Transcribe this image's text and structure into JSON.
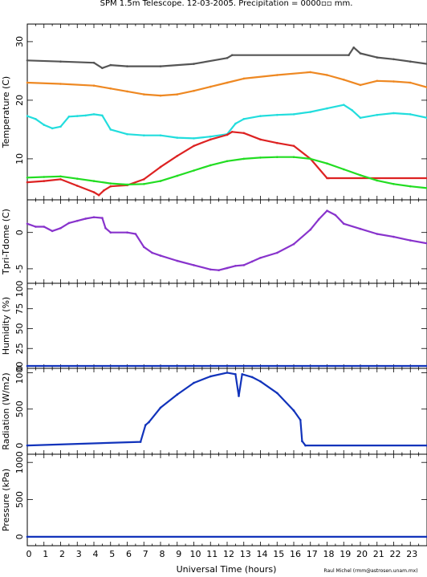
{
  "title": "SPM 1.5m Telescope. 12-03-2005. Precipitation = 0000▫▫ mm.",
  "credit": "Raul Michel (rmm@astrosen.unam.mx)",
  "chart_data": [
    {
      "type": "scatter",
      "ylabel": "Temperature (C)",
      "ylim": [
        3,
        33
      ],
      "yticks": [
        10,
        20,
        30
      ],
      "xlim": [
        0,
        24
      ],
      "series": [
        {
          "color": "#555555",
          "x": [
            0,
            2,
            4,
            4.5,
            5,
            6,
            8,
            10,
            12,
            12.3,
            19.3,
            19.6,
            20,
            21,
            22,
            23,
            24
          ],
          "y": [
            26.8,
            26.6,
            26.4,
            25.5,
            26,
            25.8,
            25.8,
            26.2,
            27.2,
            27.7,
            27.7,
            29,
            28,
            27.3,
            27,
            26.6,
            26.2
          ]
        },
        {
          "color": "#ee8822",
          "x": [
            0,
            2,
            4,
            5,
            6,
            7,
            8,
            9,
            10,
            11,
            12,
            13,
            15,
            17,
            18,
            19,
            20,
            21,
            22,
            23,
            24
          ],
          "y": [
            23,
            22.8,
            22.5,
            22,
            21.5,
            21,
            20.8,
            21,
            21.6,
            22.3,
            23,
            23.7,
            24.3,
            24.8,
            24.3,
            23.5,
            22.6,
            23.3,
            23.2,
            23,
            22.2
          ]
        },
        {
          "color": "#22dddd",
          "x": [
            0,
            0.5,
            1,
            1.5,
            2,
            2.5,
            3,
            3.5,
            4,
            4.5,
            5,
            6,
            7,
            8,
            9,
            10,
            11,
            12,
            12.5,
            13,
            14,
            15,
            16,
            17,
            18,
            19,
            19.5,
            20,
            21,
            22,
            23,
            24
          ],
          "y": [
            17.3,
            16.8,
            15.8,
            15.2,
            15.5,
            17.2,
            17.3,
            17.4,
            17.6,
            17.4,
            15,
            14.2,
            14,
            14,
            13.6,
            13.5,
            13.8,
            14.2,
            16,
            16.8,
            17.3,
            17.5,
            17.6,
            18,
            18.6,
            19.2,
            18.3,
            17,
            17.5,
            17.8,
            17.6,
            17
          ]
        },
        {
          "color": "#dd2222",
          "x": [
            0,
            1,
            2,
            3,
            4,
            4.3,
            4.6,
            5,
            6,
            7,
            8,
            9,
            10,
            11,
            12,
            12.3,
            13,
            14,
            15,
            16,
            17,
            18,
            18.1,
            24
          ],
          "y": [
            6,
            6.2,
            6.5,
            5.4,
            4.3,
            3.8,
            4.6,
            5.3,
            5.5,
            6.5,
            8.6,
            10.5,
            12.2,
            13.3,
            14.1,
            14.6,
            14.4,
            13.3,
            12.7,
            12.2,
            10,
            6.7,
            6.7,
            6.7
          ]
        },
        {
          "color": "#22dd22",
          "x": [
            0,
            1,
            2,
            3,
            4,
            5,
            6,
            7,
            8,
            9,
            10,
            11,
            12,
            13,
            14,
            15,
            16,
            17,
            18,
            19,
            20,
            21,
            22,
            23,
            24
          ],
          "y": [
            6.8,
            6.9,
            7,
            6.6,
            6.2,
            5.8,
            5.6,
            5.7,
            6.2,
            7.1,
            8,
            8.9,
            9.6,
            10,
            10.2,
            10.3,
            10.3,
            10,
            9.2,
            8.2,
            7.2,
            6.3,
            5.7,
            5.3,
            5
          ]
        }
      ]
    },
    {
      "type": "scatter",
      "ylabel": "Tpri-Tdome (C)",
      "ylim": [
        -7,
        4.5
      ],
      "yticks": [
        0,
        -5
      ],
      "xlim": [
        0,
        24
      ],
      "series": [
        {
          "color": "#8833cc",
          "x": [
            0,
            0.5,
            1,
            1.5,
            2,
            2.5,
            3,
            3.5,
            4,
            4.5,
            4.7,
            5,
            6,
            6.5,
            7,
            7.5,
            8,
            9,
            10,
            11,
            11.5,
            12,
            12.5,
            13,
            13.5,
            14,
            15,
            16,
            17,
            17.5,
            18,
            18.5,
            19,
            20,
            21,
            22,
            23,
            24
          ],
          "y": [
            1.2,
            0.8,
            0.8,
            0.2,
            0.6,
            1.3,
            1.6,
            1.9,
            2.1,
            2,
            0.6,
            0,
            0,
            -0.2,
            -2,
            -2.8,
            -3.2,
            -3.9,
            -4.5,
            -5.1,
            -5.2,
            -4.9,
            -4.6,
            -4.5,
            -4,
            -3.5,
            -2.8,
            -1.6,
            0.4,
            1.8,
            3,
            2.4,
            1.2,
            0.5,
            -0.2,
            -0.6,
            -1.1,
            -1.5
          ]
        }
      ]
    },
    {
      "type": "line",
      "ylabel": "Humidity (%)",
      "ylim": [
        0,
        107
      ],
      "yticks": [
        0,
        25,
        50,
        75,
        100
      ],
      "xlim": [
        0,
        24
      ],
      "series": [
        {
          "color": "#1133bb",
          "x": [
            0,
            24
          ],
          "y": [
            3,
            3
          ]
        }
      ]
    },
    {
      "type": "scatter",
      "ylabel": "Radiation (W/m2)",
      "ylim": [
        -120,
        1060
      ],
      "yticks": [
        0,
        500,
        1000
      ],
      "xlim": [
        0,
        24
      ],
      "series": [
        {
          "color": "#1133bb",
          "x": [
            0,
            6.8,
            7.1,
            7.3,
            8,
            9,
            10,
            11,
            12,
            12.5,
            12.7,
            12.9,
            13.5,
            14,
            15,
            16,
            16.4,
            16.5,
            16.7,
            24
          ],
          "y": [
            0,
            50,
            280,
            320,
            520,
            700,
            860,
            950,
            1000,
            980,
            680,
            980,
            940,
            880,
            720,
            480,
            350,
            60,
            0,
            0
          ]
        }
      ]
    },
    {
      "type": "line",
      "ylabel": "Pressure (kPa)",
      "ylim": [
        -120,
        1110
      ],
      "yticks": [
        0,
        500,
        1000
      ],
      "xlim": [
        0,
        24
      ],
      "series": [
        {
          "color": "#1133bb",
          "x": [
            0,
            24
          ],
          "y": [
            0,
            0
          ]
        }
      ]
    }
  ],
  "xaxis": {
    "label": "Universal Time (hours)",
    "ticks": [
      "0",
      "1",
      "2",
      "3",
      "4",
      "5",
      "6",
      "7",
      "8",
      "9",
      "10",
      "11",
      "12",
      "13",
      "14",
      "15",
      "16",
      "17",
      "18",
      "19",
      "20",
      "21",
      "22",
      "23"
    ]
  }
}
